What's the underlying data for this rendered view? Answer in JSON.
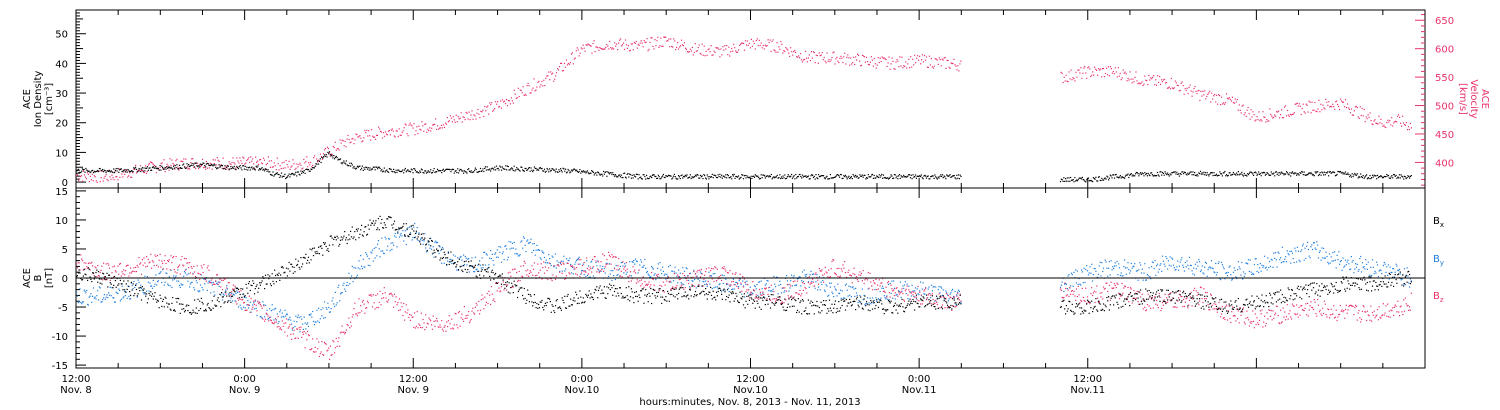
{
  "colors": {
    "black": "#000000",
    "pink": "#e8336a",
    "blue": "#1f7fe0"
  },
  "chart_data": [
    {
      "type": "scatter",
      "panel": "top",
      "ylabel_left": [
        "ACE",
        "Ion Density",
        "[cm⁻³]"
      ],
      "ylabel_right": [
        "ACE",
        "Velocity",
        "[km/s]"
      ],
      "ylim_left": [
        -2,
        58
      ],
      "ylim_right": [
        355,
        668
      ],
      "left_ticks": [
        "0",
        "10",
        "20",
        "30",
        "40",
        "50"
      ],
      "right_ticks": [
        "400",
        "450",
        "500",
        "550",
        "600",
        "650"
      ],
      "series": [
        {
          "color": "#000000",
          "axis": "left",
          "x_hours": [
            0,
            3,
            6,
            9,
            11,
            13,
            14,
            15,
            16.5,
            17,
            17.5,
            18,
            18.5,
            20,
            23,
            26,
            28,
            30,
            35,
            40,
            45,
            50,
            55,
            60,
            63,
            64,
            66,
            68,
            70,
            72,
            74,
            76,
            78,
            80,
            82,
            84,
            86,
            88,
            90,
            92,
            93,
            94,
            95
          ],
          "values": [
            4,
            4,
            5,
            6,
            5,
            5,
            3,
            2,
            4,
            6,
            8,
            10,
            8,
            5,
            4,
            4,
            4,
            5,
            4,
            2,
            2,
            2,
            2,
            2,
            2,
            1,
            1,
            1,
            1,
            1,
            2,
            3,
            3,
            3,
            3,
            3,
            3,
            3,
            3,
            2,
            2,
            2,
            2
          ],
          "gaps_hours": [
            [
              63,
              70
            ]
          ]
        },
        {
          "color": "#e8336a",
          "axis": "right",
          "x_hours": [
            0,
            2,
            4,
            6,
            8,
            10,
            12,
            14,
            15,
            16,
            17,
            18,
            19,
            20,
            22,
            24,
            26,
            28,
            30,
            32,
            34,
            36,
            38,
            40,
            42,
            44,
            46,
            48,
            50,
            52,
            54,
            56,
            58,
            60,
            62,
            63,
            70,
            72,
            74,
            76,
            78,
            80,
            82,
            84,
            86,
            88,
            90,
            92,
            93,
            94,
            95
          ],
          "values": [
            378,
            375,
            385,
            395,
            400,
            400,
            400,
            400,
            395,
            400,
            405,
            420,
            435,
            445,
            455,
            460,
            470,
            485,
            500,
            530,
            555,
            600,
            610,
            605,
            615,
            600,
            595,
            610,
            605,
            585,
            585,
            580,
            575,
            580,
            575,
            572,
            550,
            560,
            560,
            545,
            540,
            520,
            510,
            480,
            490,
            500,
            505,
            480,
            470,
            475,
            465
          ],
          "gaps_hours": [
            [
              63,
              70
            ]
          ]
        }
      ]
    },
    {
      "type": "scatter",
      "panel": "bottom",
      "ylabel_left": [
        "ACE",
        "B",
        "[nT]"
      ],
      "ylim": [
        -15.5,
        15.5
      ],
      "left_ticks": [
        "-15",
        "-10",
        "-5",
        "0",
        "5",
        "10",
        "15"
      ],
      "legend": [
        {
          "label": "B",
          "sub": "x",
          "color": "#000000"
        },
        {
          "label": "B",
          "sub": "y",
          "color": "#1f7fe0"
        },
        {
          "label": "B",
          "sub": "z",
          "color": "#e8336a"
        }
      ],
      "series": [
        {
          "name": "Bx",
          "color": "#000000",
          "x_hours": [
            0,
            2,
            4,
            6,
            8,
            10,
            12,
            14,
            16,
            18,
            20,
            22,
            24,
            26,
            28,
            30,
            32,
            34,
            36,
            38,
            40,
            42,
            44,
            46,
            48,
            50,
            52,
            54,
            56,
            58,
            60,
            62,
            63,
            70,
            72,
            74,
            76,
            78,
            80,
            82,
            84,
            86,
            88,
            90,
            92,
            94,
            95
          ],
          "values": [
            1,
            0,
            -2,
            -4,
            -5,
            -4,
            -2,
            0,
            3,
            6,
            8,
            10,
            8,
            4,
            2,
            0,
            -3,
            -5,
            -3,
            -2,
            -3,
            -3,
            -2,
            -3,
            -4,
            -4,
            -5,
            -5,
            -4,
            -5,
            -4,
            -4,
            -4,
            -5,
            -5,
            -4,
            -3,
            -3,
            -4,
            -5,
            -4,
            -3,
            -2,
            -1,
            -1,
            0,
            0
          ],
          "gaps_hours": [
            [
              63,
              70
            ]
          ]
        },
        {
          "name": "By",
          "color": "#1f7fe0",
          "x_hours": [
            0,
            2,
            4,
            6,
            8,
            10,
            12,
            14,
            16,
            18,
            20,
            22,
            24,
            26,
            28,
            30,
            32,
            34,
            36,
            38,
            40,
            42,
            44,
            46,
            48,
            50,
            52,
            54,
            56,
            58,
            60,
            62,
            63,
            70,
            72,
            74,
            76,
            78,
            80,
            82,
            84,
            86,
            88,
            90,
            92,
            94,
            95
          ],
          "values": [
            -3,
            -3,
            -2,
            0,
            0,
            -2,
            -4,
            -6,
            -8,
            -5,
            2,
            6,
            8,
            4,
            2,
            4,
            6,
            3,
            2,
            1,
            2,
            1,
            0,
            -1,
            -2,
            -1,
            0,
            -2,
            -3,
            -2,
            -2,
            -3,
            -3,
            -1,
            1,
            2,
            1,
            3,
            2,
            1,
            2,
            4,
            5,
            3,
            2,
            1,
            0
          ],
          "gaps_hours": [
            [
              63,
              70
            ]
          ]
        },
        {
          "name": "Bz",
          "color": "#e8336a",
          "x_hours": [
            0,
            2,
            4,
            6,
            8,
            10,
            12,
            14,
            16,
            18,
            20,
            22,
            24,
            26,
            28,
            30,
            32,
            34,
            36,
            38,
            40,
            42,
            44,
            46,
            48,
            50,
            52,
            54,
            56,
            58,
            60,
            62,
            63,
            70,
            72,
            74,
            76,
            78,
            80,
            82,
            84,
            86,
            88,
            90,
            92,
            94,
            95
          ],
          "values": [
            3,
            1,
            2,
            3,
            2,
            0,
            -4,
            -7,
            -10,
            -13,
            -5,
            -3,
            -7,
            -8,
            -6,
            -2,
            2,
            1,
            2,
            3,
            0,
            -1,
            0,
            1,
            -2,
            -3,
            -1,
            2,
            0,
            -2,
            -3,
            -4,
            -4,
            -2,
            -3,
            -2,
            -4,
            -4,
            -3,
            -6,
            -7,
            -6,
            -5,
            -6,
            -6,
            -5,
            -4
          ],
          "gaps_hours": [
            [
              63,
              70
            ]
          ]
        }
      ]
    }
  ],
  "x_axis": {
    "xlim_hours": [
      0,
      96
    ],
    "major_ticks": [
      {
        "hour": 0,
        "time": "12:00",
        "date": "Nov. 8"
      },
      {
        "hour": 12,
        "time": "0:00",
        "date": "Nov. 9"
      },
      {
        "hour": 24,
        "time": "12:00",
        "date": "Nov. 9"
      },
      {
        "hour": 36,
        "time": "0:00",
        "date": "Nov.10"
      },
      {
        "hour": 48,
        "time": "12:00",
        "date": "Nov.10"
      },
      {
        "hour": 60,
        "time": "0:00",
        "date": "Nov.11"
      },
      {
        "hour": 72,
        "time": "12:00",
        "date": "Nov.11"
      }
    ],
    "title": "hours:minutes, Nov.  8, 2013 - Nov. 11, 2013"
  }
}
